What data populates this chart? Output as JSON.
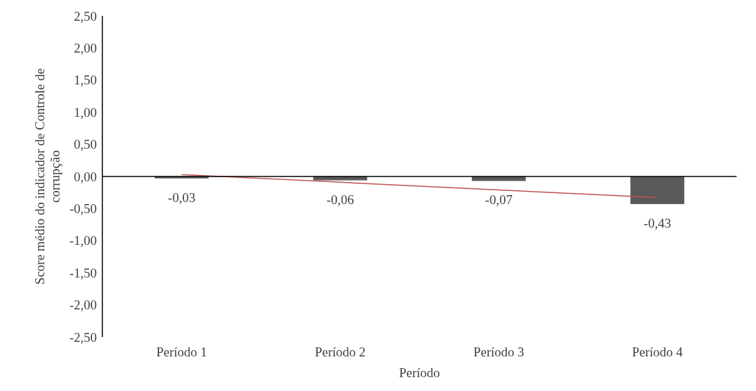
{
  "chart_data": {
    "type": "bar",
    "xlabel": "Período",
    "ylabel": "Score médio do indicador de Controle de corrupção",
    "categories": [
      "Período 1",
      "Período 2",
      "Período 3",
      "Período 4"
    ],
    "series": [
      {
        "color": "#595959",
        "values": [
          -0.03,
          -0.06,
          -0.07,
          -0.43
        ],
        "value_labels": [
          "-0,03",
          "-0,06",
          "-0,07",
          "-0,43"
        ]
      },
      {
        "type": "line",
        "color": "#c0504d",
        "values": [
          0.03,
          -0.09,
          -0.21,
          -0.33
        ]
      }
    ],
    "ylim": [
      -2.5,
      2.5
    ],
    "yticks": [
      {
        "value": -2.5,
        "label": "-2,50"
      },
      {
        "value": -2,
        "label": "-2,00"
      },
      {
        "value": -1.5,
        "label": "-1,50"
      },
      {
        "value": -1,
        "label": "-1,00"
      },
      {
        "value": -0.5,
        "label": "-0,50"
      },
      {
        "value": 0,
        "label": "0,00"
      },
      {
        "value": 0.5,
        "label": "0,50"
      },
      {
        "value": 1,
        "label": "1,00"
      },
      {
        "value": 1.5,
        "label": "1,50"
      },
      {
        "value": 2,
        "label": "2,00"
      },
      {
        "value": 2.5,
        "label": "2,50"
      }
    ],
    "tick_labels": true
  }
}
